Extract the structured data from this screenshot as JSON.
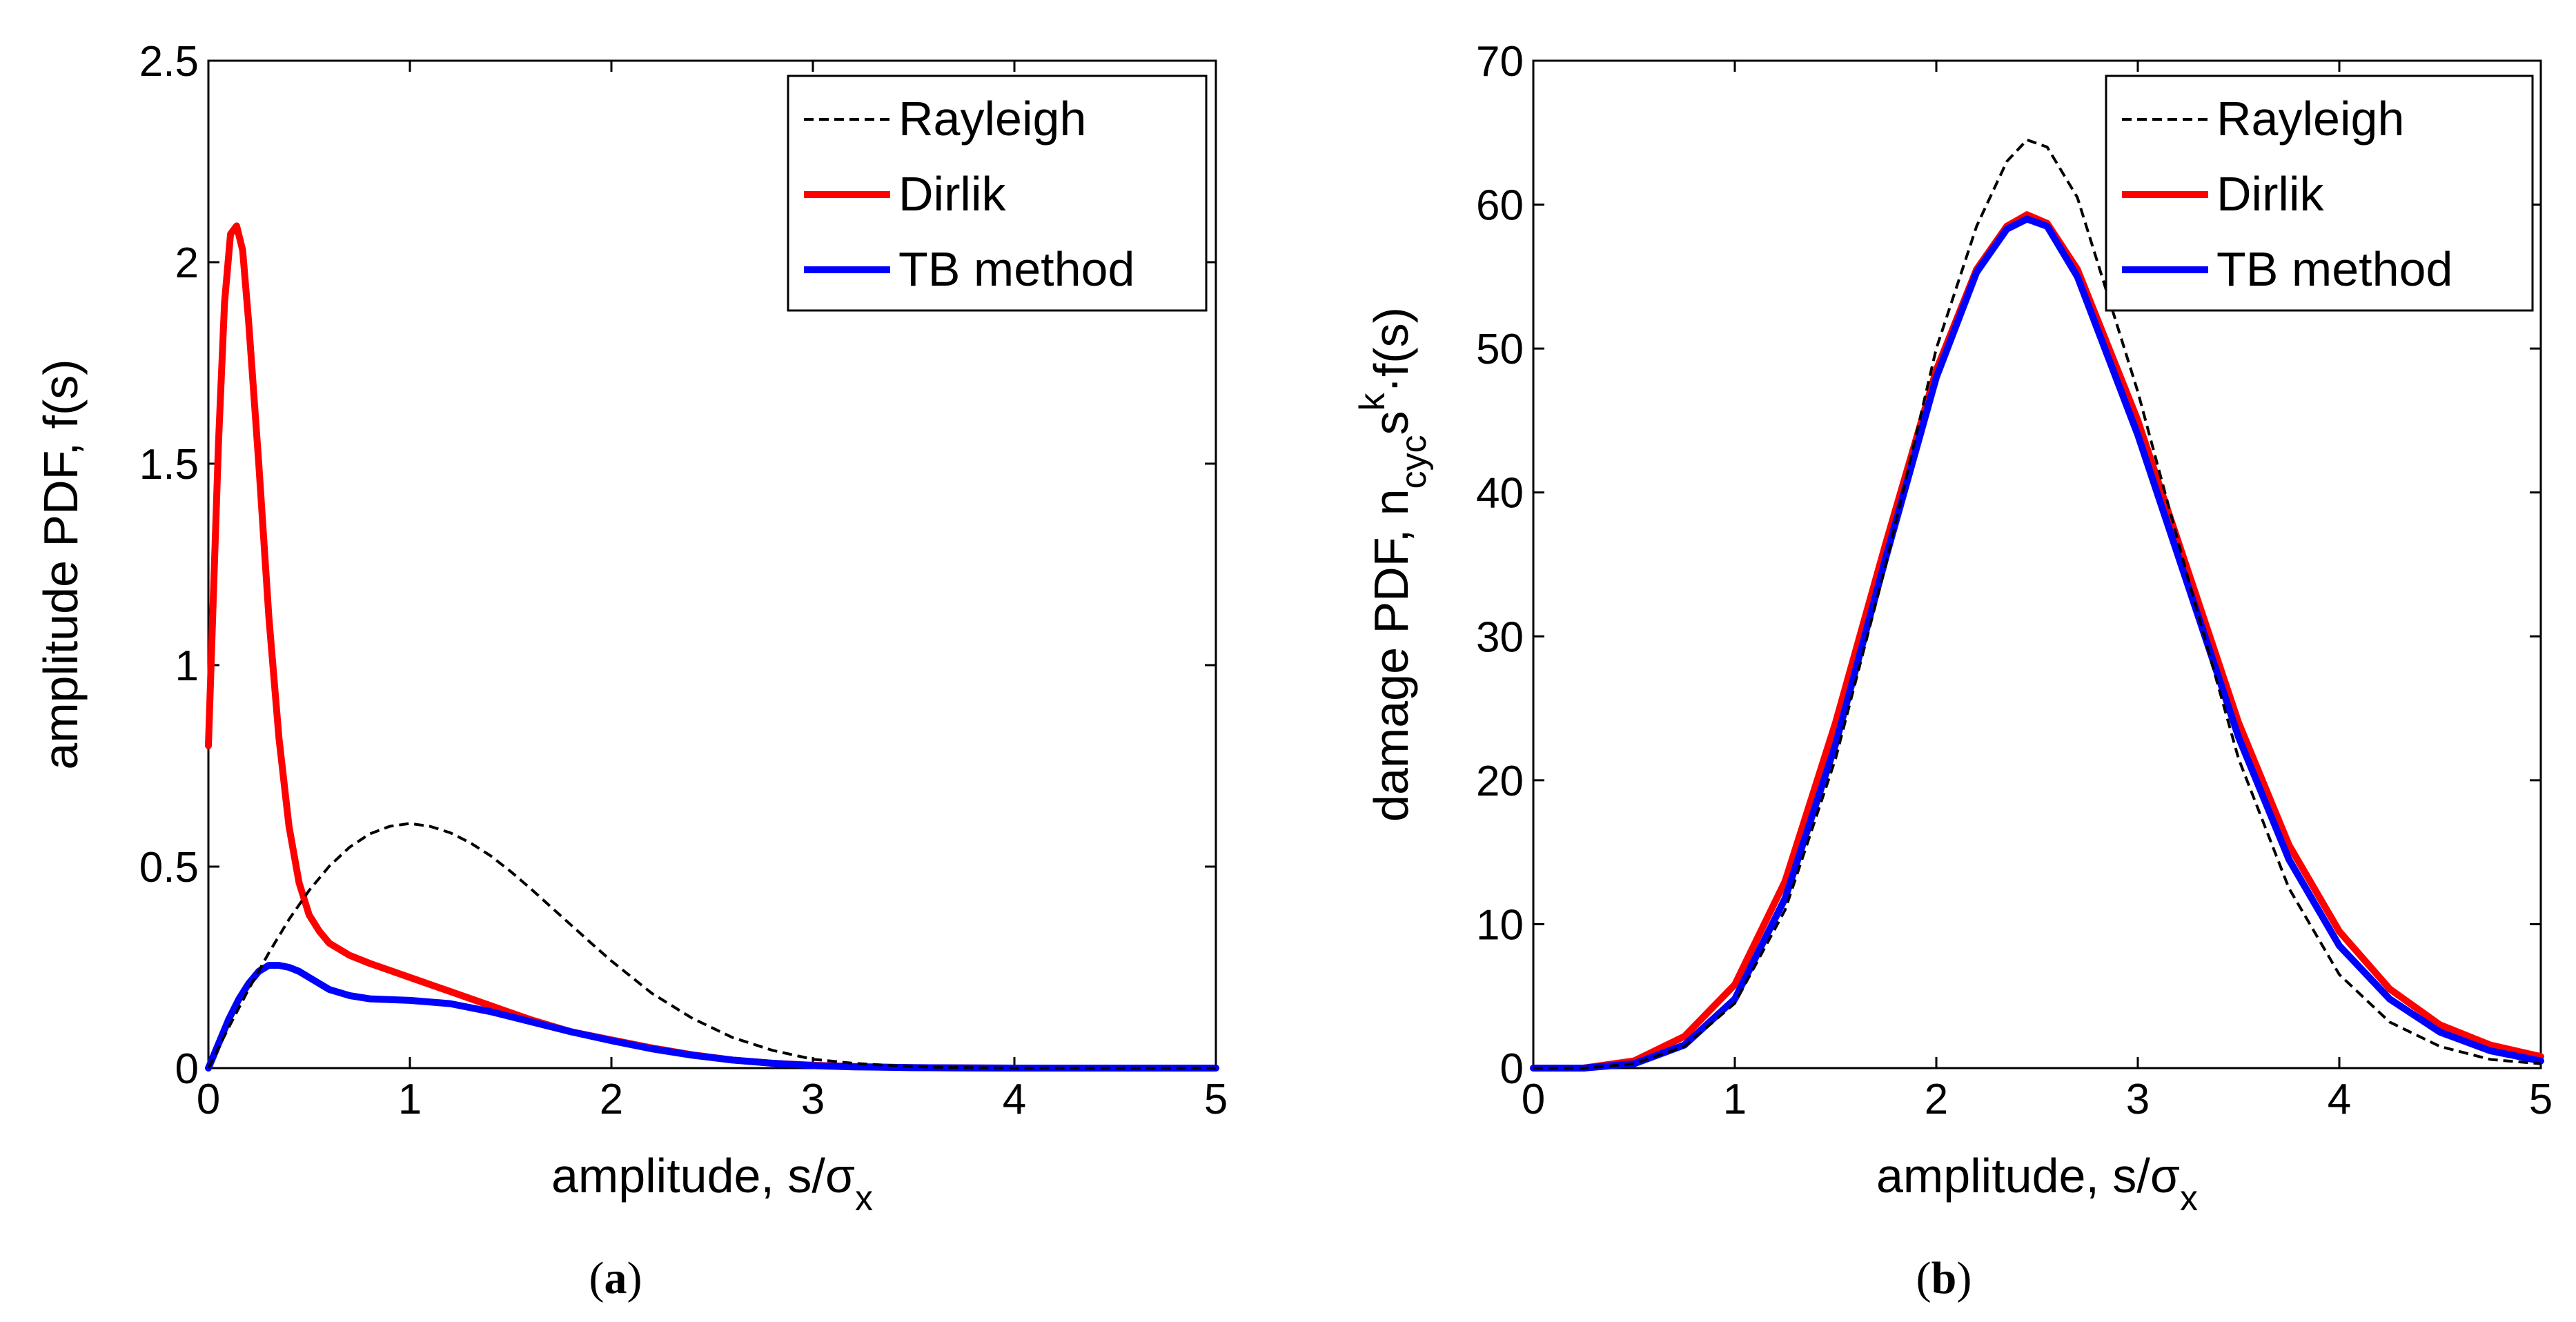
{
  "chart_data": [
    {
      "type": "line",
      "panel": "a",
      "caption_letter": "a",
      "xlabel": {
        "prefix": "amplitude, s/",
        "sigma": "σ",
        "subscript": "x"
      },
      "ylabel": "amplitude PDF, f(s)",
      "xlim": [
        0,
        5
      ],
      "ylim": [
        0,
        2.5
      ],
      "xticks": [
        0,
        1,
        2,
        3,
        4,
        5
      ],
      "xticklabels": [
        "0",
        "1",
        "2",
        "3",
        "4",
        "5"
      ],
      "yticks": [
        0,
        0.5,
        1,
        1.5,
        2,
        2.5
      ],
      "yticklabels": [
        "0",
        "0.5",
        "1",
        "1.5",
        "2",
        "2.5"
      ],
      "legend_position": "top-right",
      "series": [
        {
          "name": "Rayleigh",
          "color": "#000000",
          "style": "dashed",
          "x": [
            0,
            0.1,
            0.2,
            0.3,
            0.4,
            0.5,
            0.6,
            0.7,
            0.8,
            0.9,
            1.0,
            1.1,
            1.2,
            1.3,
            1.4,
            1.5,
            1.6,
            1.7,
            1.8,
            1.9,
            2.0,
            2.2,
            2.4,
            2.6,
            2.8,
            3.0,
            3.2,
            3.4,
            3.6,
            3.8,
            4.0,
            4.5,
            5.0
          ],
          "y": [
            0,
            0.1,
            0.196,
            0.286,
            0.369,
            0.441,
            0.501,
            0.548,
            0.581,
            0.6,
            0.607,
            0.6,
            0.584,
            0.559,
            0.527,
            0.488,
            0.445,
            0.4,
            0.355,
            0.31,
            0.266,
            0.186,
            0.124,
            0.076,
            0.044,
            0.022,
            0.012,
            0.006,
            0.002,
            0.001,
            0,
            0,
            0
          ]
        },
        {
          "name": "Dirlik",
          "color": "#ff0000",
          "style": "solid",
          "x": [
            0,
            0.02,
            0.05,
            0.08,
            0.11,
            0.14,
            0.17,
            0.2,
            0.25,
            0.3,
            0.35,
            0.4,
            0.45,
            0.5,
            0.55,
            0.6,
            0.7,
            0.8,
            1.0,
            1.2,
            1.4,
            1.6,
            1.8,
            2.0,
            2.2,
            2.4,
            2.6,
            2.8,
            3.0,
            3.2,
            3.5,
            4.0,
            5.0
          ],
          "y": [
            0.8,
            1.1,
            1.55,
            1.9,
            2.07,
            2.09,
            2.03,
            1.85,
            1.5,
            1.12,
            0.82,
            0.6,
            0.46,
            0.38,
            0.34,
            0.31,
            0.28,
            0.26,
            0.225,
            0.19,
            0.155,
            0.12,
            0.09,
            0.07,
            0.05,
            0.033,
            0.02,
            0.012,
            0.007,
            0.004,
            0.001,
            0,
            0
          ]
        },
        {
          "name": "TB method",
          "color": "#0000ff",
          "style": "solid",
          "x": [
            0,
            0.05,
            0.1,
            0.15,
            0.2,
            0.25,
            0.3,
            0.35,
            0.4,
            0.45,
            0.5,
            0.55,
            0.6,
            0.7,
            0.8,
            0.9,
            1.0,
            1.2,
            1.4,
            1.6,
            1.8,
            2.0,
            2.2,
            2.4,
            2.6,
            2.8,
            3.0,
            3.2,
            3.5,
            4.0,
            5.0
          ],
          "y": [
            0,
            0.06,
            0.12,
            0.17,
            0.21,
            0.24,
            0.255,
            0.255,
            0.25,
            0.24,
            0.225,
            0.21,
            0.195,
            0.18,
            0.172,
            0.17,
            0.168,
            0.16,
            0.14,
            0.115,
            0.09,
            0.068,
            0.048,
            0.032,
            0.02,
            0.012,
            0.006,
            0.003,
            0.001,
            0,
            0
          ]
        }
      ]
    },
    {
      "type": "line",
      "panel": "b",
      "caption_letter": "b",
      "xlabel": {
        "prefix": "amplitude, s/",
        "sigma": "σ",
        "subscript": "x"
      },
      "ylabel": {
        "prefix": "damage PDF,  n",
        "sub": "cyc",
        "mid": "s",
        "sup": "k",
        "suffix": "·f(s)"
      },
      "xlim": [
        0,
        5
      ],
      "ylim": [
        0,
        70
      ],
      "xticks": [
        0,
        1,
        2,
        3,
        4,
        5
      ],
      "xticklabels": [
        "0",
        "1",
        "2",
        "3",
        "4",
        "5"
      ],
      "yticks": [
        0,
        10,
        20,
        30,
        40,
        50,
        60,
        70
      ],
      "yticklabels": [
        "0",
        "10",
        "20",
        "30",
        "40",
        "50",
        "60",
        "70"
      ],
      "legend_position": "top-right",
      "series": [
        {
          "name": "Rayleigh",
          "color": "#000000",
          "style": "dashed",
          "x": [
            0,
            0.25,
            0.5,
            0.75,
            1.0,
            1.25,
            1.5,
            1.75,
            2.0,
            2.2,
            2.35,
            2.45,
            2.55,
            2.7,
            3.0,
            3.25,
            3.5,
            3.75,
            4.0,
            4.25,
            4.5,
            4.75,
            5.0
          ],
          "y": [
            0,
            0,
            0.3,
            1.5,
            4.5,
            11,
            21.5,
            35,
            50,
            58.5,
            63,
            64.5,
            64,
            60.5,
            47,
            34,
            21.5,
            12.5,
            6.5,
            3.2,
            1.5,
            0.6,
            0.3
          ]
        },
        {
          "name": "Dirlik",
          "color": "#ff0000",
          "style": "solid",
          "x": [
            0,
            0.25,
            0.5,
            0.75,
            1.0,
            1.25,
            1.5,
            1.75,
            2.0,
            2.2,
            2.35,
            2.45,
            2.55,
            2.7,
            3.0,
            3.25,
            3.5,
            3.75,
            4.0,
            4.25,
            4.5,
            4.75,
            5.0
          ],
          "y": [
            0,
            0,
            0.5,
            2.2,
            5.8,
            13,
            24,
            36.5,
            48.5,
            55.5,
            58.5,
            59.3,
            58.7,
            55.5,
            45,
            34.5,
            24,
            15.5,
            9.5,
            5.5,
            3,
            1.6,
            0.8
          ]
        },
        {
          "name": "TB method",
          "color": "#0000ff",
          "style": "solid",
          "x": [
            0,
            0.25,
            0.5,
            0.75,
            1.0,
            1.25,
            1.5,
            1.75,
            2.0,
            2.2,
            2.35,
            2.45,
            2.55,
            2.7,
            3.0,
            3.25,
            3.5,
            3.75,
            4.0,
            4.25,
            4.5,
            4.75,
            5.0
          ],
          "y": [
            0,
            0,
            0.3,
            1.6,
            4.8,
            11.8,
            22.5,
            35.5,
            48,
            55.3,
            58.3,
            59,
            58.5,
            55,
            44,
            33.5,
            23,
            14.5,
            8.5,
            4.8,
            2.5,
            1.2,
            0.5
          ]
        }
      ]
    }
  ]
}
